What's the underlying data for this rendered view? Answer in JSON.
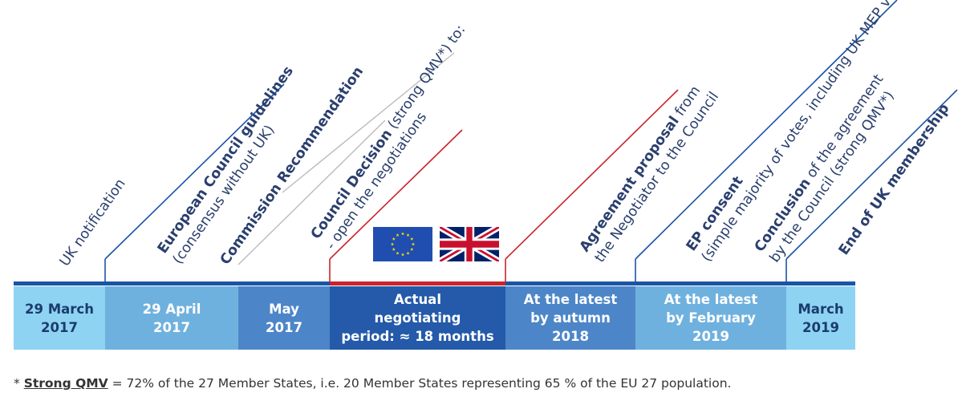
{
  "colors": {
    "blue_dark": "#1a54a6",
    "blue_text": "#2a3f6e",
    "red": "#c9242b",
    "eu_blue": "#1f4eb0",
    "eu_star": "#ffdd00",
    "uk_blue": "#012169",
    "uk_red": "#c8102e"
  },
  "events": [
    {
      "lines": [
        {
          "bold": "",
          "text": "UK notification"
        }
      ],
      "line_color": "none"
    },
    {
      "lines": [
        {
          "bold": "European Council guidelines",
          "text": ""
        },
        {
          "bold": "",
          "text": "(consensus without UK)"
        }
      ],
      "line_color": "blue"
    },
    {
      "lines": [
        {
          "bold": "Commission Recommendation",
          "text": ""
        }
      ],
      "line_color": "grey"
    },
    {
      "lines": [
        {
          "bold": "Council Decision",
          "text": " (strong QMV*) to:"
        },
        {
          "bold": "",
          "text": "- open the negotiations"
        }
      ],
      "line_color": "grey/red"
    },
    {
      "lines": [
        {
          "bold": "Agreement proposal",
          "text": " from"
        },
        {
          "bold": "",
          "text": "the Negotiator to the Council"
        }
      ],
      "line_color": "red"
    },
    {
      "lines": [
        {
          "bold": "EP consent",
          "text": ""
        },
        {
          "bold": "",
          "text": "(simple majority of votes, including UK MEP votes)"
        }
      ],
      "line_color": "blue"
    },
    {
      "lines": [
        {
          "bold": "Conclusion",
          "text": " of the agreement"
        },
        {
          "bold": "",
          "text": "by the Council (strong QMV*)"
        }
      ],
      "line_color": "blue"
    },
    {
      "lines": [
        {
          "bold": "End of  UK membership",
          "text": ""
        }
      ],
      "line_color": "blue"
    }
  ],
  "periods": [
    {
      "lines": [
        "29 March",
        "2017"
      ],
      "bg": "#8fd3f2",
      "fg": "#1a3c6e"
    },
    {
      "lines": [
        "29 April",
        "2017"
      ],
      "bg": "#6fb1de",
      "fg": "#ffffff"
    },
    {
      "lines": [
        "May",
        "2017"
      ],
      "bg": "#4d86c8",
      "fg": "#ffffff"
    },
    {
      "lines": [
        "Actual",
        "negotiating",
        "period: ≈ 18 months"
      ],
      "bg": "#245aa9",
      "fg": "#ffffff"
    },
    {
      "lines": [
        "At the latest",
        "by autumn",
        "2018"
      ],
      "bg": "#4d86c8",
      "fg": "#ffffff"
    },
    {
      "lines": [
        "At the latest",
        "by February",
        "2019"
      ],
      "bg": "#6fb1de",
      "fg": "#ffffff"
    },
    {
      "lines": [
        "March",
        "2019"
      ],
      "bg": "#8fd3f2",
      "fg": "#1a3c6e"
    }
  ],
  "flags": [
    {
      "name": "EU flag",
      "icon": "eu-flag-icon"
    },
    {
      "name": "UK flag",
      "icon": "uk-flag-icon"
    }
  ],
  "footnote": {
    "prefix": "* ",
    "term": "Strong QMV",
    "text": " = 72% of the 27 Member States, i.e. 20 Member States representing 65 % of the EU 27 population."
  }
}
